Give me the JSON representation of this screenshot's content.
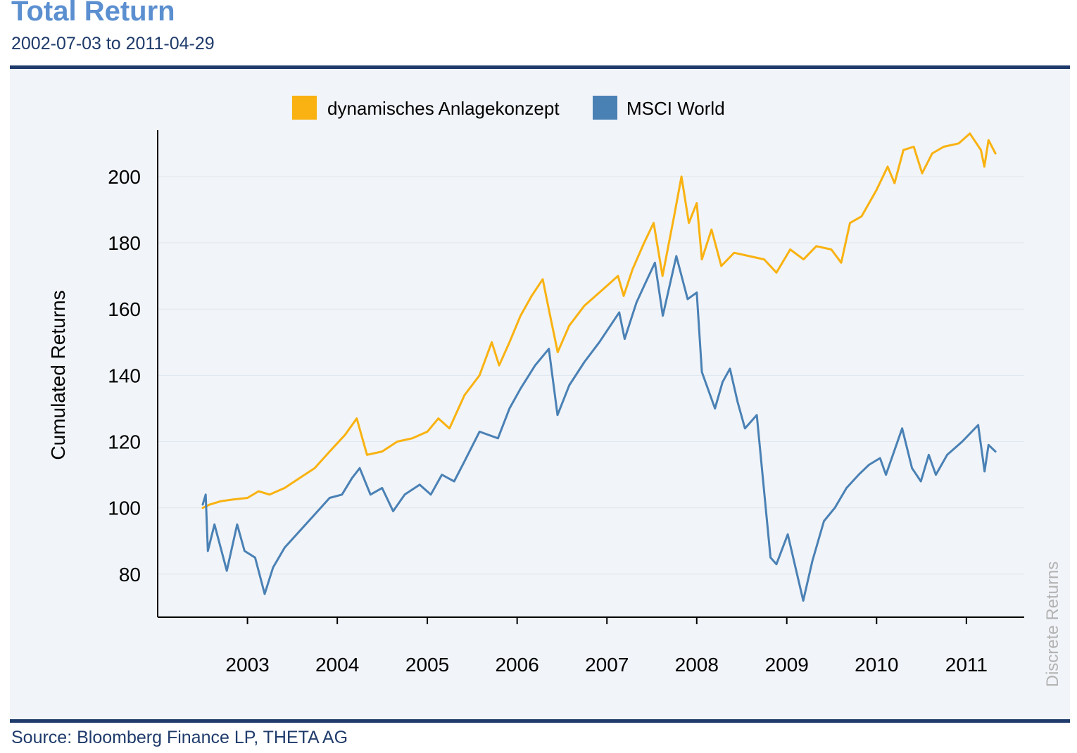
{
  "header": {
    "title": "Total Return",
    "subtitle": "2002-07-03 to 2011-04-29"
  },
  "footer": {
    "source": "Source: Bloomberg Finance LP, THETA AG"
  },
  "side_note": "Discrete Returns",
  "colors": {
    "series1": "#f9b211",
    "series2": "#4a81b5",
    "title": "#5b8fd0",
    "rule": "#1f3b6b",
    "grid": "#dfe6ee"
  },
  "chart_data": {
    "type": "line",
    "title": "Total Return",
    "subtitle": "2002-07-03 to 2011-04-29",
    "ylabel": "Cumulated Returns",
    "xlabel": "",
    "ylim": [
      67,
      214
    ],
    "xlim": [
      "2002-01-01",
      "2011-08-24"
    ],
    "yticks": [
      80,
      100,
      120,
      140,
      160,
      180,
      200
    ],
    "xticks": [
      {
        "date": "2003-01-01",
        "label": "2003"
      },
      {
        "date": "2004-01-01",
        "label": "2004"
      },
      {
        "date": "2005-01-01",
        "label": "2005"
      },
      {
        "date": "2006-01-01",
        "label": "2006"
      },
      {
        "date": "2007-01-01",
        "label": "2007"
      },
      {
        "date": "2008-01-01",
        "label": "2008"
      },
      {
        "date": "2009-01-01",
        "label": "2009"
      },
      {
        "date": "2010-01-01",
        "label": "2010"
      },
      {
        "date": "2011-01-01",
        "label": "2011"
      }
    ],
    "grid": true,
    "legend_position": "top-center",
    "series": [
      {
        "name": "dynamisches Anlagekonzept",
        "color": "#f9b211",
        "points": [
          [
            "2002-07-03",
            100
          ],
          [
            "2002-08-01",
            101
          ],
          [
            "2002-09-15",
            102
          ],
          [
            "2002-11-01",
            102.5
          ],
          [
            "2003-01-01",
            103
          ],
          [
            "2003-02-15",
            105
          ],
          [
            "2003-04-01",
            104
          ],
          [
            "2003-06-01",
            106
          ],
          [
            "2003-08-01",
            109
          ],
          [
            "2003-10-01",
            112
          ],
          [
            "2003-12-01",
            117
          ],
          [
            "2004-02-01",
            122
          ],
          [
            "2004-03-20",
            127
          ],
          [
            "2004-05-01",
            116
          ],
          [
            "2004-07-01",
            117
          ],
          [
            "2004-09-01",
            120
          ],
          [
            "2004-11-01",
            121
          ],
          [
            "2005-01-01",
            123
          ],
          [
            "2005-02-15",
            127
          ],
          [
            "2005-04-01",
            124
          ],
          [
            "2005-06-01",
            134
          ],
          [
            "2005-08-01",
            140
          ],
          [
            "2005-09-20",
            150
          ],
          [
            "2005-10-20",
            143
          ],
          [
            "2005-12-01",
            150
          ],
          [
            "2006-01-15",
            158
          ],
          [
            "2006-03-01",
            164
          ],
          [
            "2006-04-15",
            169
          ],
          [
            "2006-05-15",
            158
          ],
          [
            "2006-06-15",
            147
          ],
          [
            "2006-08-01",
            155
          ],
          [
            "2006-10-01",
            161
          ],
          [
            "2006-12-01",
            165
          ],
          [
            "2007-02-15",
            170
          ],
          [
            "2007-03-10",
            164
          ],
          [
            "2007-04-15",
            172
          ],
          [
            "2007-06-01",
            180
          ],
          [
            "2007-07-10",
            186
          ],
          [
            "2007-08-15",
            170
          ],
          [
            "2007-10-01",
            188
          ],
          [
            "2007-10-31",
            200
          ],
          [
            "2007-11-30",
            186
          ],
          [
            "2008-01-01",
            192
          ],
          [
            "2008-01-22",
            175
          ],
          [
            "2008-03-01",
            184
          ],
          [
            "2008-04-10",
            173
          ],
          [
            "2008-06-01",
            177
          ],
          [
            "2008-08-01",
            176
          ],
          [
            "2008-10-01",
            175
          ],
          [
            "2008-11-20",
            171
          ],
          [
            "2009-01-15",
            178
          ],
          [
            "2009-03-10",
            175
          ],
          [
            "2009-05-01",
            179
          ],
          [
            "2009-07-01",
            178
          ],
          [
            "2009-08-10",
            174
          ],
          [
            "2009-09-15",
            186
          ],
          [
            "2009-11-01",
            188
          ],
          [
            "2010-01-01",
            196
          ],
          [
            "2010-02-15",
            203
          ],
          [
            "2010-03-15",
            198
          ],
          [
            "2010-04-20",
            208
          ],
          [
            "2010-06-01",
            209
          ],
          [
            "2010-07-05",
            201
          ],
          [
            "2010-08-15",
            207
          ],
          [
            "2010-10-01",
            209
          ],
          [
            "2010-12-01",
            210
          ],
          [
            "2011-01-15",
            213
          ],
          [
            "2011-03-01",
            208
          ],
          [
            "2011-03-15",
            203
          ],
          [
            "2011-04-01",
            211
          ],
          [
            "2011-04-29",
            207
          ]
        ]
      },
      {
        "name": "MSCI World",
        "color": "#4a81b5",
        "points": [
          [
            "2002-07-03",
            101
          ],
          [
            "2002-07-15",
            104
          ],
          [
            "2002-07-24",
            87
          ],
          [
            "2002-08-20",
            95
          ],
          [
            "2002-10-09",
            81
          ],
          [
            "2002-11-20",
            95
          ],
          [
            "2002-12-20",
            87
          ],
          [
            "2003-02-01",
            85
          ],
          [
            "2003-03-12",
            74
          ],
          [
            "2003-04-15",
            82
          ],
          [
            "2003-06-01",
            88
          ],
          [
            "2003-08-01",
            93
          ],
          [
            "2003-10-01",
            98
          ],
          [
            "2003-12-01",
            103
          ],
          [
            "2004-01-20",
            104
          ],
          [
            "2004-03-01",
            109
          ],
          [
            "2004-04-01",
            112
          ],
          [
            "2004-05-15",
            104
          ],
          [
            "2004-07-01",
            106
          ],
          [
            "2004-08-15",
            99
          ],
          [
            "2004-10-01",
            104
          ],
          [
            "2004-12-01",
            107
          ],
          [
            "2005-01-15",
            104
          ],
          [
            "2005-03-01",
            110
          ],
          [
            "2005-04-20",
            108
          ],
          [
            "2005-06-01",
            114
          ],
          [
            "2005-08-01",
            123
          ],
          [
            "2005-10-15",
            121
          ],
          [
            "2005-12-01",
            130
          ],
          [
            "2006-01-15",
            136
          ],
          [
            "2006-03-15",
            143
          ],
          [
            "2006-05-10",
            148
          ],
          [
            "2006-06-14",
            128
          ],
          [
            "2006-08-01",
            137
          ],
          [
            "2006-10-01",
            144
          ],
          [
            "2006-12-01",
            150
          ],
          [
            "2007-02-20",
            159
          ],
          [
            "2007-03-14",
            151
          ],
          [
            "2007-05-01",
            162
          ],
          [
            "2007-06-01",
            167
          ],
          [
            "2007-07-15",
            174
          ],
          [
            "2007-08-16",
            158
          ],
          [
            "2007-10-10",
            176
          ],
          [
            "2007-11-25",
            163
          ],
          [
            "2008-01-01",
            165
          ],
          [
            "2008-01-22",
            141
          ],
          [
            "2008-03-15",
            130
          ],
          [
            "2008-04-15",
            138
          ],
          [
            "2008-05-15",
            142
          ],
          [
            "2008-06-15",
            132
          ],
          [
            "2008-07-15",
            124
          ],
          [
            "2008-09-01",
            128
          ],
          [
            "2008-10-10",
            98
          ],
          [
            "2008-10-27",
            85
          ],
          [
            "2008-11-20",
            83
          ],
          [
            "2009-01-05",
            92
          ],
          [
            "2009-03-09",
            72
          ],
          [
            "2009-04-15",
            84
          ],
          [
            "2009-06-01",
            96
          ],
          [
            "2009-07-15",
            100
          ],
          [
            "2009-09-01",
            106
          ],
          [
            "2009-10-20",
            110
          ],
          [
            "2009-12-01",
            113
          ],
          [
            "2010-01-15",
            115
          ],
          [
            "2010-02-08",
            110
          ],
          [
            "2010-04-15",
            124
          ],
          [
            "2010-05-25",
            112
          ],
          [
            "2010-06-30",
            108
          ],
          [
            "2010-08-01",
            116
          ],
          [
            "2010-08-30",
            110
          ],
          [
            "2010-10-15",
            116
          ],
          [
            "2010-12-15",
            120
          ],
          [
            "2011-02-18",
            125
          ],
          [
            "2011-03-16",
            111
          ],
          [
            "2011-04-01",
            119
          ],
          [
            "2011-04-29",
            117
          ]
        ]
      }
    ]
  }
}
